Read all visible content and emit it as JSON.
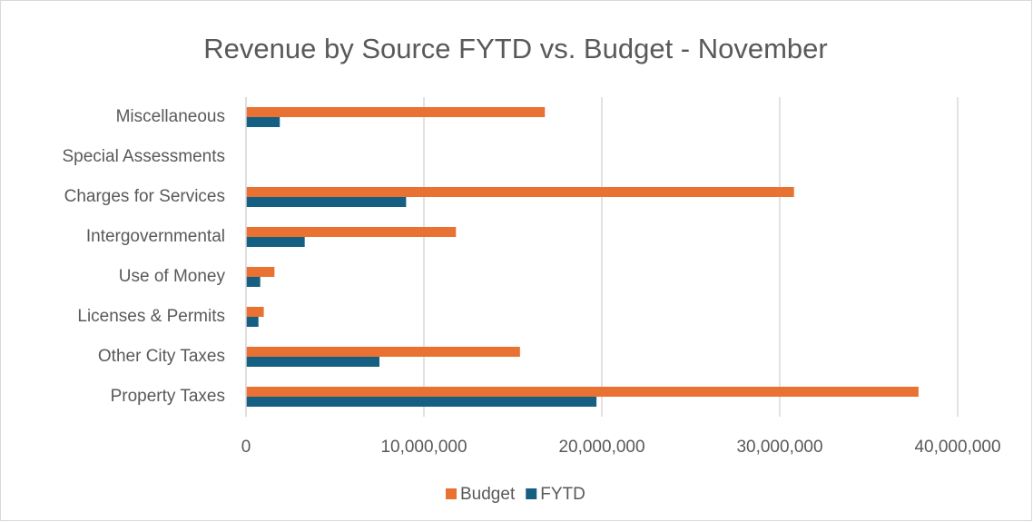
{
  "chart_data": {
    "type": "hbar",
    "title": "Revenue by Source FYTD vs. Budget - November",
    "categories": [
      "Property Taxes",
      "Other City Taxes",
      "Licenses & Permits",
      "Use of Money",
      "Intergovernmental",
      "Charges for Services",
      "Special Assessments",
      "Miscellaneous"
    ],
    "series": [
      {
        "name": "Budget",
        "color": "#e97132",
        "values": [
          37800000,
          15400000,
          1000000,
          1600000,
          11800000,
          30800000,
          0,
          16800000
        ]
      },
      {
        "name": "FYTD",
        "color": "#156082",
        "values": [
          19700000,
          7500000,
          700000,
          800000,
          3300000,
          9000000,
          0,
          1900000
        ]
      }
    ],
    "xlim": [
      0,
      40000000
    ],
    "xticks": [
      0,
      {
        "value": 10000000,
        "label": "10,000,000"
      },
      {
        "value": 20000000,
        "label": "20,000,000"
      },
      {
        "value": 30000000,
        "label": "30,000,000"
      },
      {
        "value": 40000000,
        "label": "40,000,000"
      }
    ],
    "grid": true,
    "legend": "bottom"
  }
}
